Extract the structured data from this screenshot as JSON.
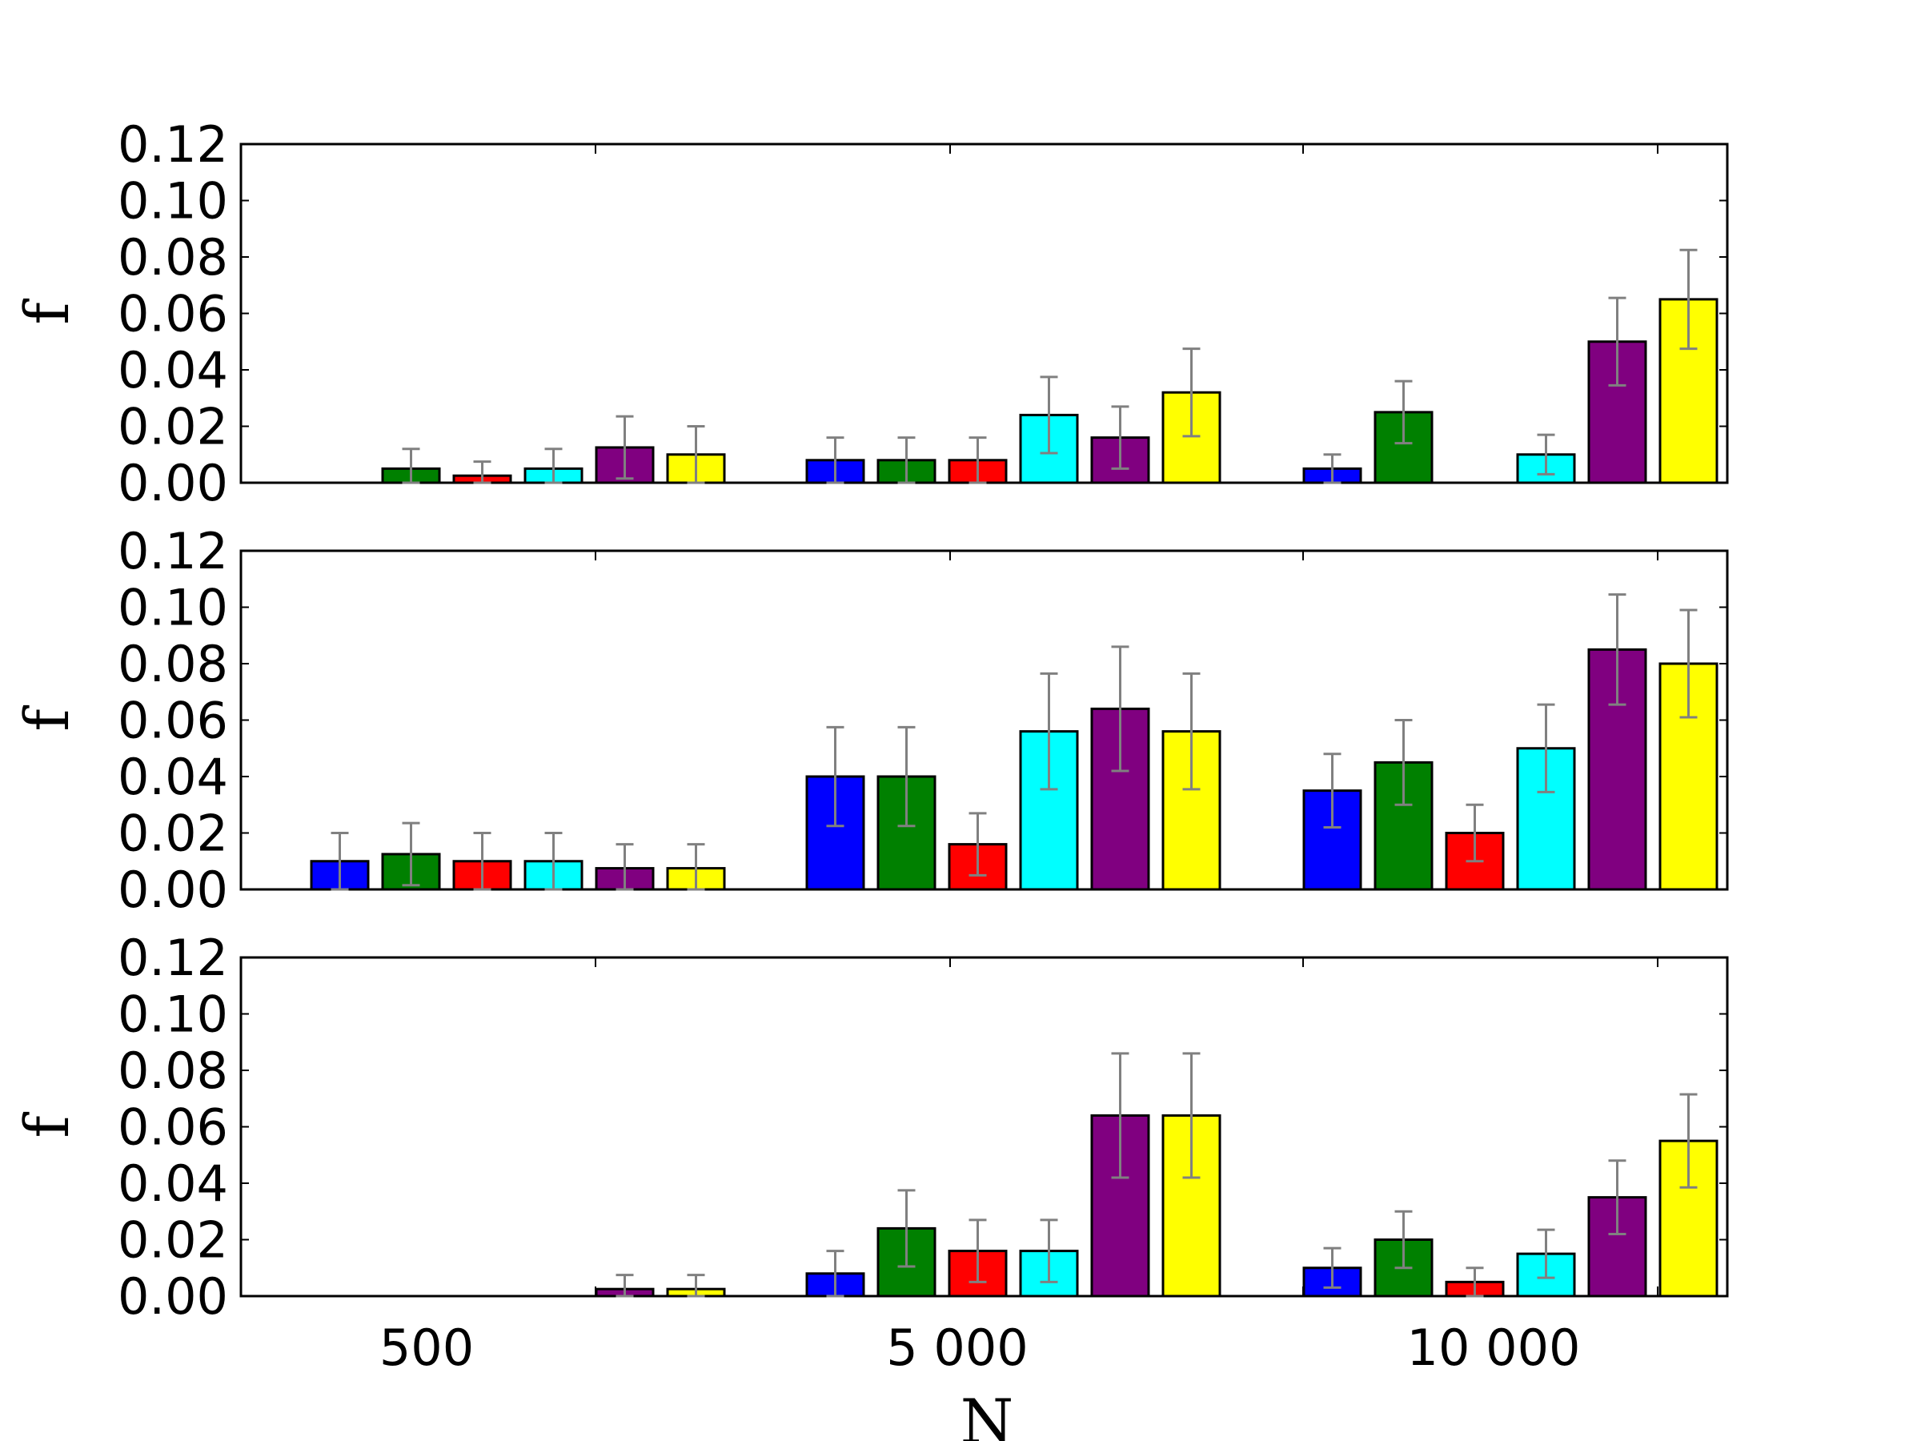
{
  "chart_data": {
    "type": "bar",
    "xlabel": "N",
    "ylabel": "f",
    "ylim": [
      0,
      0.12
    ],
    "yticks": [
      0.0,
      0.02,
      0.04,
      0.06,
      0.08,
      0.1,
      0.12
    ],
    "ytick_labels": [
      "0.00",
      "0.02",
      "0.04",
      "0.06",
      "0.08",
      "0.10",
      "0.12"
    ],
    "categories": [
      "500",
      "5 000",
      "10 000"
    ],
    "series_colors": [
      "#0000ff",
      "#008000",
      "#ff0000",
      "#00ffff",
      "#800080",
      "#ffff00"
    ],
    "error_color": "#808080",
    "panels": [
      {
        "values": [
          [
            0,
            0.005,
            0.0025,
            0.005,
            0.0125,
            0.01
          ],
          [
            0.008,
            0.008,
            0.008,
            0.024,
            0.016,
            0.032
          ],
          [
            0.005,
            0.025,
            0,
            0.01,
            0.05,
            0.065
          ]
        ],
        "errors": [
          [
            0,
            0.007,
            0.005,
            0.007,
            0.011,
            0.01
          ],
          [
            0.008,
            0.008,
            0.008,
            0.0135,
            0.011,
            0.0155
          ],
          [
            0.005,
            0.011,
            0,
            0.007,
            0.0155,
            0.0175
          ]
        ]
      },
      {
        "values": [
          [
            0.01,
            0.0125,
            0.01,
            0.01,
            0.0075,
            0.0075
          ],
          [
            0.04,
            0.04,
            0.016,
            0.056,
            0.064,
            0.056
          ],
          [
            0.035,
            0.045,
            0.02,
            0.05,
            0.085,
            0.08
          ]
        ],
        "errors": [
          [
            0.01,
            0.011,
            0.01,
            0.01,
            0.0085,
            0.0085
          ],
          [
            0.0175,
            0.0175,
            0.011,
            0.0205,
            0.022,
            0.0205
          ],
          [
            0.013,
            0.015,
            0.01,
            0.0155,
            0.0195,
            0.019
          ]
        ]
      },
      {
        "values": [
          [
            0,
            0,
            0,
            0,
            0.0025,
            0.0025
          ],
          [
            0.008,
            0.024,
            0.016,
            0.016,
            0.064,
            0.064
          ],
          [
            0.01,
            0.02,
            0.005,
            0.015,
            0.035,
            0.055
          ]
        ],
        "errors": [
          [
            0,
            0,
            0,
            0,
            0.005,
            0.005
          ],
          [
            0.008,
            0.0135,
            0.011,
            0.011,
            0.022,
            0.022
          ],
          [
            0.007,
            0.01,
            0.005,
            0.0085,
            0.013,
            0.0165
          ]
        ]
      }
    ]
  }
}
